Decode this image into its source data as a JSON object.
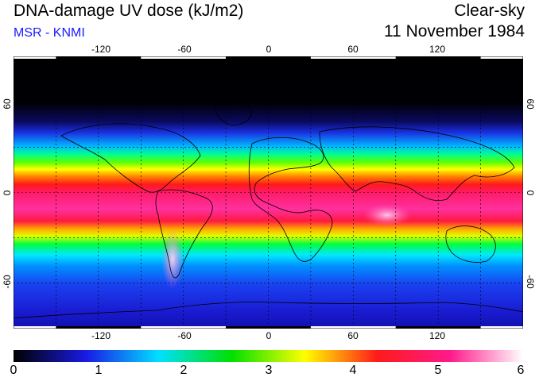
{
  "header": {
    "title": "DNA-damage UV dose (kJ/m2)",
    "subtitle": "MSR - KNMI",
    "condition": "Clear-sky",
    "date": "11 November 1984"
  },
  "map": {
    "lon_ticks": [
      "-120",
      "-60",
      "0",
      "60",
      "120"
    ],
    "lat_ticks": [
      "60",
      "0",
      "-60"
    ],
    "lon_range": [
      -180,
      180
    ],
    "lat_range": [
      -90,
      90
    ],
    "gridline_spacing_deg": 30
  },
  "colorbar": {
    "labels": [
      "0",
      "1",
      "2",
      "3",
      "4",
      "5",
      "6"
    ],
    "range": [
      0,
      6
    ],
    "colors": [
      "#000000",
      "#1a1ae6",
      "#00e0ff",
      "#00e000",
      "#ffff00",
      "#ff1a1a",
      "#ff1a8c",
      "#ffffff"
    ]
  }
}
